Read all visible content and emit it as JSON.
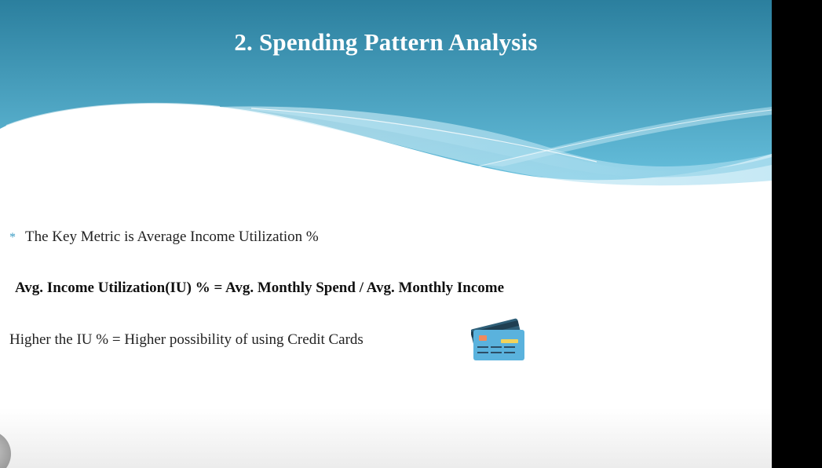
{
  "slide": {
    "title": "2. Spending Pattern Analysis",
    "bullet_symbol": "*",
    "bullet_text": "The Key Metric is Average  Income Utilization %",
    "formula": "Avg. Income Utilization(IU) % =  Avg. Monthly Spend / Avg. Monthly Income",
    "conclusion": "Higher the IU %  = Higher possibility  of using  Credit Cards",
    "icon": "credit-card-icon"
  },
  "colors": {
    "header_top": "#2b7f9e",
    "header_bottom": "#6ec4df",
    "wave_light": "#a8dbee",
    "accent": "#3a9cc4"
  }
}
